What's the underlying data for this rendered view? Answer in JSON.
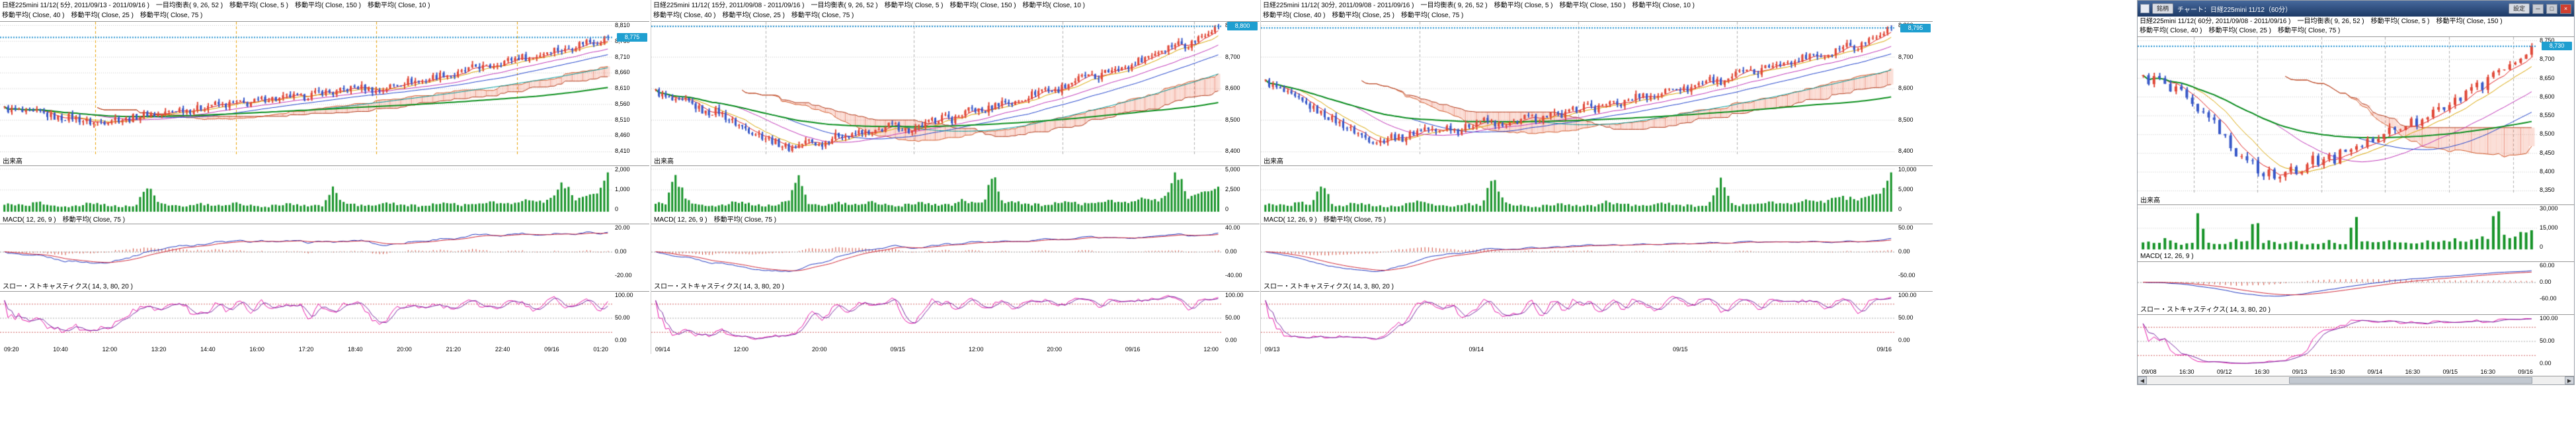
{
  "panels": [
    {
      "header1": "日経225mini 11/12( 5分, 2011/09/13 - 2011/09/16 )　一目均衡表( 9, 26, 52 )　移動平均( Close, 5 )　移動平均( Close, 150 )　移動平均( Close, 10 )",
      "header2": "移動平均( Close, 40 )　移動平均( Close, 25 )　移動平均( Close, 75 )",
      "volume_label": "出来高",
      "macd_label": "MACD( 12, 26, 9 )　移動平均( Close, 75 )",
      "stoch_label": "スロー・ストキャスティクス( 14, 3, 80, 20 )",
      "price_tag": "8,775",
      "axes": {
        "price": [
          "8,810",
          "8,760",
          "8,710",
          "8,660",
          "8,610",
          "8,560",
          "8,510",
          "8,460",
          "8,410"
        ],
        "volume": [
          "2,000",
          "1,000",
          "0"
        ],
        "macd": [
          "20.00",
          "0.00",
          "-20.00"
        ],
        "stoch": [
          "100.00",
          "50.00",
          "0.00"
        ],
        "time": [
          "09:20",
          "10:40",
          "12:00",
          "13:20",
          "14:40",
          "16:00",
          "17:20",
          "18:40",
          "20:00",
          "21:20",
          "22:40",
          "09/16",
          "01:20"
        ]
      }
    },
    {
      "header1": "日経225mini 11/12( 15分, 2011/09/08 - 2011/09/16 )　一目均衡表( 9, 26, 52 )　移動平均( Close, 5 )　移動平均( Close, 150 )　移動平均( Close, 10 )",
      "header2": "移動平均( Close, 40 )　移動平均( Close, 25 )　移動平均( Close, 75 )",
      "volume_label": "出来高",
      "macd_label": "MACD( 12, 26, 9 )　移動平均( Close, 75 )",
      "stoch_label": "スロー・ストキャスティクス( 14, 3, 80, 20 )",
      "price_tag": "8,800",
      "axes": {
        "price": [
          "8,800",
          "8,700",
          "8,600",
          "8,500",
          "8,400"
        ],
        "volume": [
          "5,000",
          "2,500",
          "0"
        ],
        "macd": [
          "40.00",
          "0.00",
          "-40.00"
        ],
        "stoch": [
          "100.00",
          "50.00",
          "0.00"
        ],
        "time": [
          "09/14",
          "12:00",
          "20:00",
          "09/15",
          "12:00",
          "20:00",
          "09/16",
          "12:00"
        ]
      }
    },
    {
      "header1": "日経225mini 11/12( 30分, 2011/09/08 - 2011/09/16 )　一目均衡表( 9, 26, 52 )　移動平均( Close, 5 )　移動平均( Close, 150 )　移動平均( Close, 10 )",
      "header2": "移動平均( Close, 40 )　移動平均( Close, 25 )　移動平均( Close, 75 )",
      "volume_label": "出来高",
      "macd_label": "MACD( 12, 26, 9 )　移動平均( Close, 75 )",
      "stoch_label": "スロー・ストキャスティクス( 14, 3, 80, 20 )",
      "price_tag": "8,795",
      "axes": {
        "price": [
          "8,800",
          "8,700",
          "8,600",
          "8,500",
          "8,400"
        ],
        "volume": [
          "10,000",
          "5,000",
          "0"
        ],
        "macd": [
          "50.00",
          "0.00",
          "-50.00"
        ],
        "stoch": [
          "100.00",
          "50.00",
          "0.00"
        ],
        "time": [
          "09/13",
          "09/14",
          "09/15",
          "09/16"
        ]
      }
    },
    {
      "header1": "日経225mini 11/12( 60分, 2011/09/08 - 2011/09/16 )　一目均衡表( 9, 26, 52 )　移動平均( Close, 5 )　移動平均( Close, 150 )",
      "header2": "移動平均( Close, 40 )　移動平均( Close, 25 )　移動平均( Close, 75 )",
      "volume_label": "出来高",
      "macd_label": "MACD( 12, 26, 9 )",
      "stoch_label": "スロー・ストキャスティクス( 14, 3, 80, 20 )",
      "price_tag": "8,730",
      "axes": {
        "price": [
          "8,750",
          "8,700",
          "8,650",
          "8,600",
          "8,550",
          "8,500",
          "8,450",
          "8,400",
          "8,350"
        ],
        "volume": [
          "30,000",
          "15,000",
          "0"
        ],
        "macd": [
          "60.00",
          "0.00",
          "-60.00"
        ],
        "stoch": [
          "100.00",
          "50.00",
          "0.00"
        ],
        "time": [
          "09/08",
          "16:30",
          "09/12",
          "16:30",
          "09/13",
          "16:30",
          "09/14",
          "16:30",
          "09/15",
          "16:30",
          "09/16"
        ]
      }
    }
  ],
  "panel4_chrome": {
    "title": "チャート：日経225mini 11/12（60分）",
    "left_button": "銘柄",
    "settings_button": "設定",
    "minimize": "─",
    "maximize": "□",
    "close": "×",
    "scroll_left": "◀",
    "scroll_right": "▶"
  },
  "chart_data": [
    {
      "type": "candlestick",
      "title": "日経225mini 11/12 5分足",
      "date_range": "2011/09/13 - 2011/09/16",
      "price_range": [
        8410,
        8810
      ],
      "last_price": 8775,
      "candles_rendered": 170,
      "indicators": {
        "ichimoku": [
          9,
          26,
          52
        ],
        "sma": [
          5,
          10,
          25,
          40,
          75,
          150
        ],
        "macd": [
          12,
          26,
          9
        ],
        "slow_stochastics": [
          14,
          3,
          80,
          20
        ]
      },
      "vlines": {
        "x": [
          0.155,
          0.385,
          0.615,
          0.845
        ],
        "color": "#e8a000"
      },
      "closes": [
        8545,
        8540,
        8530,
        8535,
        8525,
        8515,
        8520,
        8510,
        8500,
        8505,
        8515,
        8510,
        8520,
        8530,
        8525,
        8535,
        8545,
        8540,
        8550,
        8560,
        8555,
        8565,
        8560,
        8570,
        8580,
        8575,
        8585,
        8580,
        8590,
        8600,
        8595,
        8605,
        8615,
        8610,
        8600,
        8615,
        8625,
        8635,
        8630,
        8645,
        8655,
        8650,
        8665,
        8680,
        8675,
        8690,
        8700,
        8710,
        8705,
        8720,
        8735,
        8730,
        8745,
        8760,
        8755,
        8775
      ],
      "volumes": [
        420,
        360,
        300,
        520,
        380,
        300,
        260,
        340,
        480,
        400,
        320,
        280,
        360,
        1400,
        460,
        380,
        300,
        340,
        420,
        360,
        300,
        460,
        380,
        320,
        280,
        360,
        440,
        380,
        320,
        300,
        1200,
        440,
        360,
        320,
        400,
        480,
        400,
        340,
        300,
        380,
        460,
        420,
        360,
        440,
        560,
        480,
        420,
        500,
        640,
        560,
        700,
        1600,
        680,
        820,
        940,
        1900
      ]
    },
    {
      "type": "candlestick",
      "title": "日経225mini 11/12 15分足",
      "date_range": "2011/09/08 - 2011/09/16",
      "price_range": [
        8400,
        8800
      ],
      "last_price": 8800,
      "candles_rendered": 170,
      "indicators": {
        "ichimoku": [
          9,
          26,
          52
        ],
        "sma": [
          5,
          10,
          25,
          40,
          75,
          150
        ],
        "macd": [
          12,
          26,
          9
        ],
        "slow_stochastics": [
          14,
          3,
          80,
          20
        ]
      },
      "vlines": {
        "x": [
          0.2,
          0.46,
          0.72,
          0.95
        ],
        "color": "#b0b0b0"
      },
      "closes": [
        8590,
        8570,
        8555,
        8560,
        8540,
        8520,
        8530,
        8505,
        8485,
        8470,
        8455,
        8440,
        8425,
        8410,
        8420,
        8435,
        8420,
        8440,
        8455,
        8445,
        8465,
        8450,
        8470,
        8485,
        8475,
        8460,
        8480,
        8495,
        8510,
        8500,
        8520,
        8535,
        8525,
        8545,
        8560,
        8550,
        8570,
        8585,
        8600,
        8590,
        8610,
        8625,
        8640,
        8630,
        8650,
        8670,
        8660,
        8685,
        8700,
        8715,
        8730,
        8745,
        8735,
        8760,
        8780,
        8800
      ],
      "volumes": [
        1050,
        900,
        4200,
        1300,
        950,
        750,
        650,
        850,
        1200,
        1000,
        800,
        700,
        900,
        1400,
        3800,
        950,
        750,
        850,
        1050,
        900,
        750,
        1150,
        950,
        800,
        700,
        900,
        1100,
        950,
        800,
        750,
        1300,
        1100,
        900,
        4400,
        1000,
        1200,
        1000,
        850,
        750,
        950,
        1150,
        1050,
        900,
        1100,
        1400,
        1200,
        1050,
        1250,
        1600,
        1400,
        1750,
        4800,
        1700,
        2050,
        2350,
        2650
      ]
    },
    {
      "type": "candlestick",
      "title": "日経225mini 11/12 30分足",
      "date_range": "2011/09/08 - 2011/09/16",
      "price_range": [
        8400,
        8800
      ],
      "last_price": 8795,
      "candles_rendered": 170,
      "indicators": {
        "ichimoku": [
          9,
          26,
          52
        ],
        "sma": [
          5,
          10,
          25,
          40,
          75,
          150
        ],
        "macd": [
          12,
          26,
          9
        ],
        "slow_stochastics": [
          14,
          3,
          80,
          20
        ]
      },
      "vlines": {
        "x": [
          0.25,
          0.5,
          0.75
        ],
        "color": "#b0b0b0"
      },
      "closes": [
        8620,
        8600,
        8580,
        8560,
        8540,
        8520,
        8500,
        8480,
        8460,
        8440,
        8430,
        8450,
        8440,
        8460,
        8475,
        8460,
        8480,
        8465,
        8485,
        8500,
        8490,
        8475,
        8495,
        8510,
        8500,
        8520,
        8510,
        8530,
        8545,
        8535,
        8555,
        8545,
        8565,
        8580,
        8570,
        8590,
        8605,
        8595,
        8615,
        8630,
        8620,
        8640,
        8655,
        8645,
        8665,
        8685,
        8675,
        8695,
        8710,
        8700,
        8720,
        8740,
        8730,
        8755,
        8775,
        8795
      ],
      "volumes": [
        2100,
        1800,
        1500,
        2600,
        1900,
        8500,
        1300,
        1700,
        2400,
        2000,
        1600,
        1400,
        1800,
        2800,
        2300,
        1900,
        1500,
        1700,
        2100,
        1800,
        9200,
        2300,
        1900,
        1600,
        1400,
        1800,
        2200,
        1900,
        1600,
        1500,
        2600,
        2200,
        1800,
        1600,
        2000,
        2400,
        2000,
        1700,
        1500,
        1900,
        8800,
        2100,
        1800,
        2200,
        2800,
        2400,
        2100,
        2500,
        3200,
        2800,
        3500,
        3900,
        3400,
        4100,
        4700,
        9600
      ]
    },
    {
      "type": "candlestick",
      "title": "日経225mini 11/12 60分足",
      "date_range": "2011/09/08 - 2011/09/16",
      "price_range": [
        8350,
        8750
      ],
      "last_price": 8730,
      "candles_rendered": 72,
      "indicators": {
        "ichimoku": [
          9,
          26,
          52
        ],
        "sma": [
          5,
          10,
          25,
          40,
          75,
          150
        ],
        "macd": [
          12,
          26,
          9
        ],
        "slow_stochastics": [
          14,
          3,
          80,
          20
        ]
      },
      "vlines": {
        "x": [
          0.14,
          0.3,
          0.46,
          0.62,
          0.78,
          0.94
        ],
        "color": "#b0b0b0"
      },
      "closes": [
        8650,
        8640,
        8655,
        8630,
        8610,
        8620,
        8595,
        8570,
        8550,
        8560,
        8530,
        8505,
        8480,
        8455,
        8430,
        8440,
        8410,
        8390,
        8400,
        8380,
        8395,
        8415,
        8400,
        8420,
        8440,
        8425,
        8445,
        8430,
        8450,
        8470,
        8455,
        8475,
        8490,
        8480,
        8500,
        8515,
        8505,
        8525,
        8540,
        8530,
        8550,
        8570,
        8560,
        8580,
        8600,
        8590,
        8615,
        8635,
        8625,
        8650,
        8670,
        8660,
        8685,
        8705,
        8695,
        8730
      ],
      "volumes": [
        5000,
        4300,
        3600,
        6200,
        4600,
        3600,
        3100,
        4100,
        26000,
        4800,
        3800,
        3400,
        4300,
        6500,
        5500,
        4600,
        24000,
        4100,
        5000,
        4300,
        3600,
        5500,
        4600,
        3800,
        3400,
        4300,
        5300,
        4600,
        3800,
        3600,
        25000,
        5300,
        4300,
        3800,
        4800,
        5800,
        4800,
        4100,
        3600,
        4600,
        5500,
        5000,
        4300,
        5300,
        6700,
        5800,
        5000,
        6000,
        7700,
        6700,
        28000,
        9400,
        8200,
        9800,
        11000,
        12700
      ]
    }
  ]
}
